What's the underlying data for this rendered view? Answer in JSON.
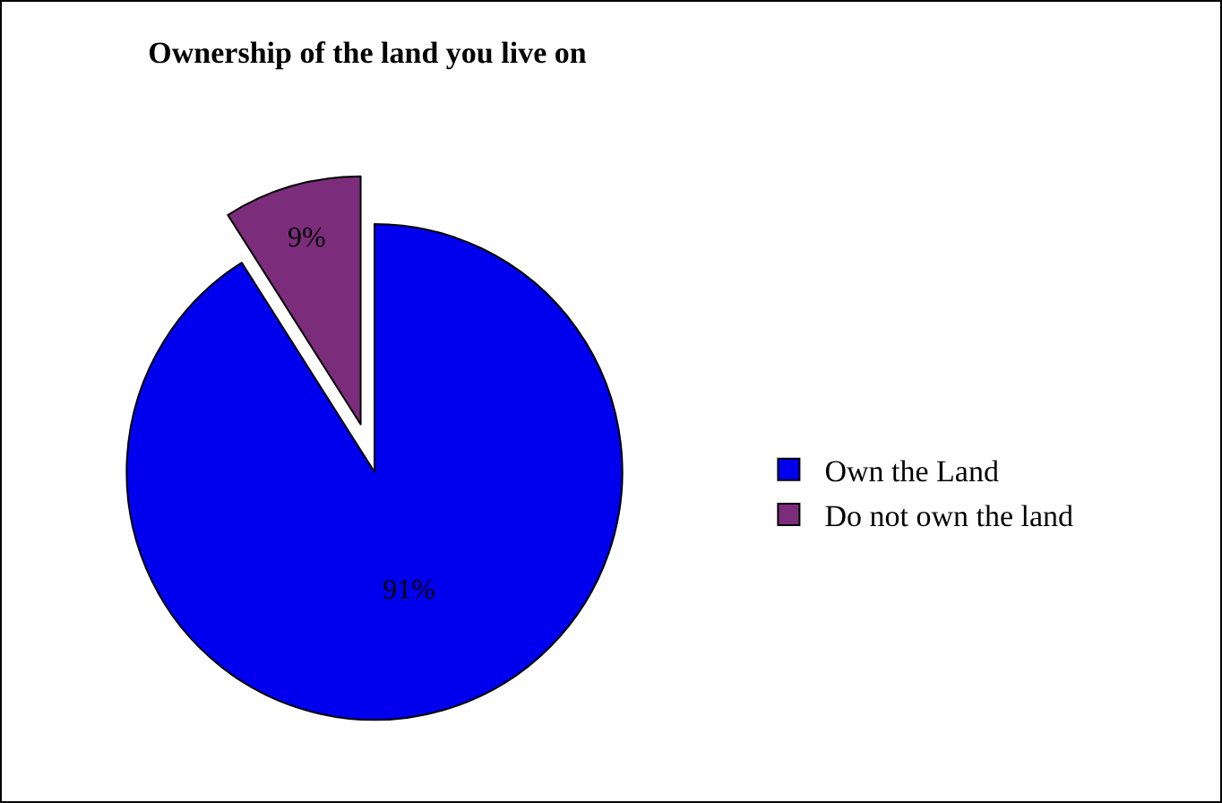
{
  "chart_data": {
    "type": "pie",
    "title": "Ownership of the land you live on",
    "categories": [
      "Own the Land",
      "Do not own the land"
    ],
    "values": [
      91,
      9
    ],
    "value_labels": [
      "91%",
      "9%"
    ],
    "colors": [
      "#0000ee",
      "#7b2d7b"
    ],
    "legend": "right"
  }
}
